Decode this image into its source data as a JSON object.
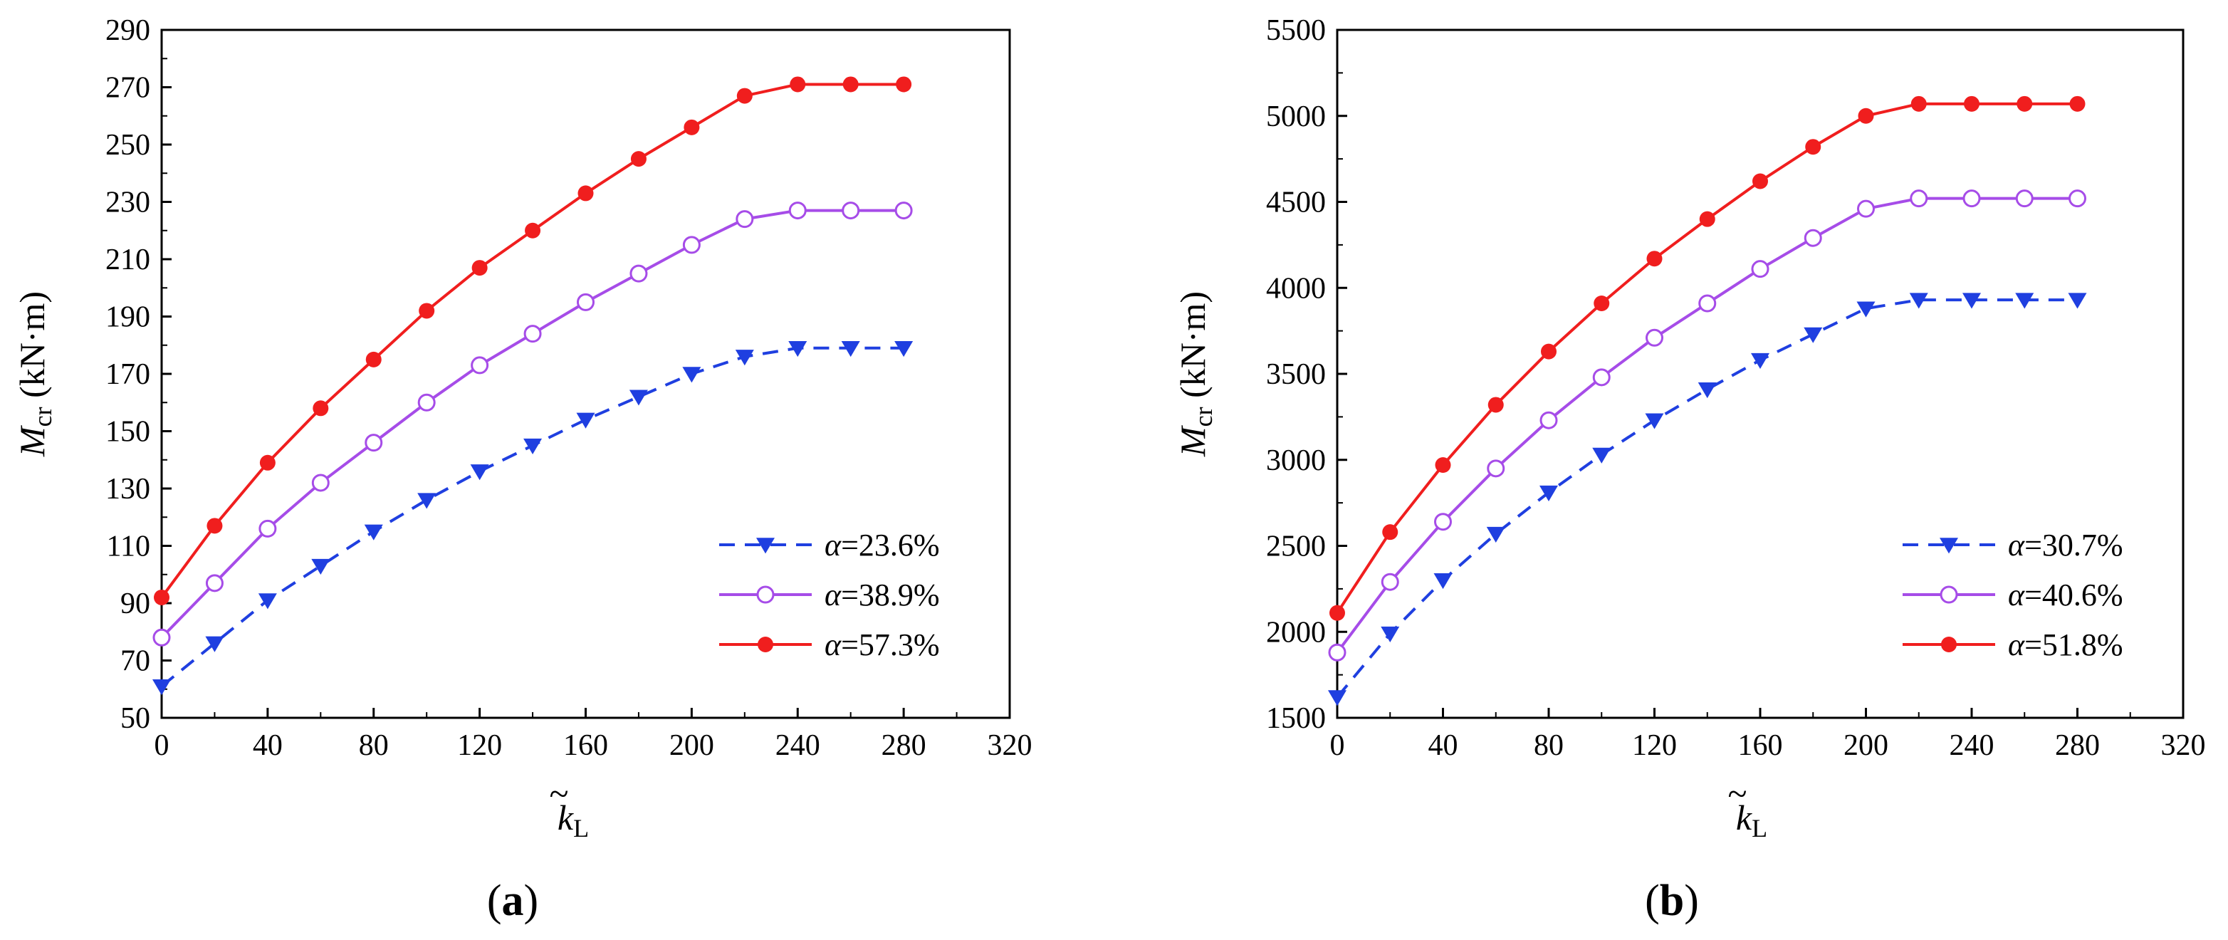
{
  "chart_data": [
    {
      "type": "line",
      "panel_label": "a",
      "xlabel_symbol": "k",
      "xlabel_subscript": "L",
      "xlabel_accent": "~",
      "ylabel_symbol": "M",
      "ylabel_subscript": "cr",
      "ylabel_unit": " (kN·m)",
      "xlim": [
        0,
        320
      ],
      "ylim": [
        50,
        290
      ],
      "xticks": [
        0,
        40,
        80,
        120,
        160,
        200,
        240,
        280,
        320
      ],
      "yticks": [
        50,
        70,
        90,
        110,
        130,
        150,
        170,
        190,
        210,
        230,
        250,
        270,
        290
      ],
      "legend_position": "bottom-right",
      "x": [
        0,
        20,
        40,
        60,
        80,
        100,
        120,
        140,
        160,
        180,
        200,
        220,
        240,
        260,
        280
      ],
      "series": [
        {
          "name_symbol": "α",
          "name_value": "=23.6%",
          "color": "#1f3fe0",
          "line_style": "dashed",
          "marker": "triangle-down",
          "values": [
            61,
            76,
            91,
            103,
            115,
            126,
            136,
            145,
            154,
            162,
            170,
            176,
            179,
            179,
            179
          ]
        },
        {
          "name_symbol": "α",
          "name_value": "=38.9%",
          "color": "#a64ce8",
          "line_style": "solid",
          "marker": "circle-open",
          "values": [
            78,
            97,
            116,
            132,
            146,
            160,
            173,
            184,
            195,
            205,
            215,
            224,
            227,
            227,
            227
          ]
        },
        {
          "name_symbol": "α",
          "name_value": "=57.3%",
          "color": "#f01e1e",
          "line_style": "solid",
          "marker": "circle-filled",
          "values": [
            92,
            117,
            139,
            158,
            175,
            192,
            207,
            220,
            233,
            245,
            256,
            267,
            271,
            271,
            271
          ]
        }
      ]
    },
    {
      "type": "line",
      "panel_label": "b",
      "xlabel_symbol": "k",
      "xlabel_subscript": "L",
      "xlabel_accent": "~",
      "ylabel_symbol": "M",
      "ylabel_subscript": "cr",
      "ylabel_unit": " (kN·m)",
      "xlim": [
        0,
        320
      ],
      "ylim": [
        1500,
        5500
      ],
      "xticks": [
        0,
        40,
        80,
        120,
        160,
        200,
        240,
        280,
        320
      ],
      "yticks": [
        1500,
        2000,
        2500,
        3000,
        3500,
        4000,
        4500,
        5000,
        5500
      ],
      "legend_position": "bottom-right",
      "x": [
        0,
        20,
        40,
        60,
        80,
        100,
        120,
        140,
        160,
        180,
        200,
        220,
        240,
        260,
        280
      ],
      "series": [
        {
          "name_symbol": "α",
          "name_value": "=30.7%",
          "color": "#1f3fe0",
          "line_style": "dashed",
          "marker": "triangle-down",
          "values": [
            1620,
            1990,
            2300,
            2570,
            2810,
            3030,
            3230,
            3410,
            3580,
            3730,
            3880,
            3930,
            3930,
            3930,
            3930
          ]
        },
        {
          "name_symbol": "α",
          "name_value": "=40.6%",
          "color": "#a64ce8",
          "line_style": "solid",
          "marker": "circle-open",
          "values": [
            1880,
            2290,
            2640,
            2950,
            3230,
            3480,
            3710,
            3910,
            4110,
            4290,
            4460,
            4520,
            4520,
            4520,
            4520
          ]
        },
        {
          "name_symbol": "α",
          "name_value": "=51.8%",
          "color": "#f01e1e",
          "line_style": "solid",
          "marker": "circle-filled",
          "values": [
            2110,
            2580,
            2970,
            3320,
            3630,
            3910,
            4170,
            4400,
            4620,
            4820,
            5000,
            5070,
            5070,
            5070,
            5070
          ]
        }
      ]
    }
  ]
}
